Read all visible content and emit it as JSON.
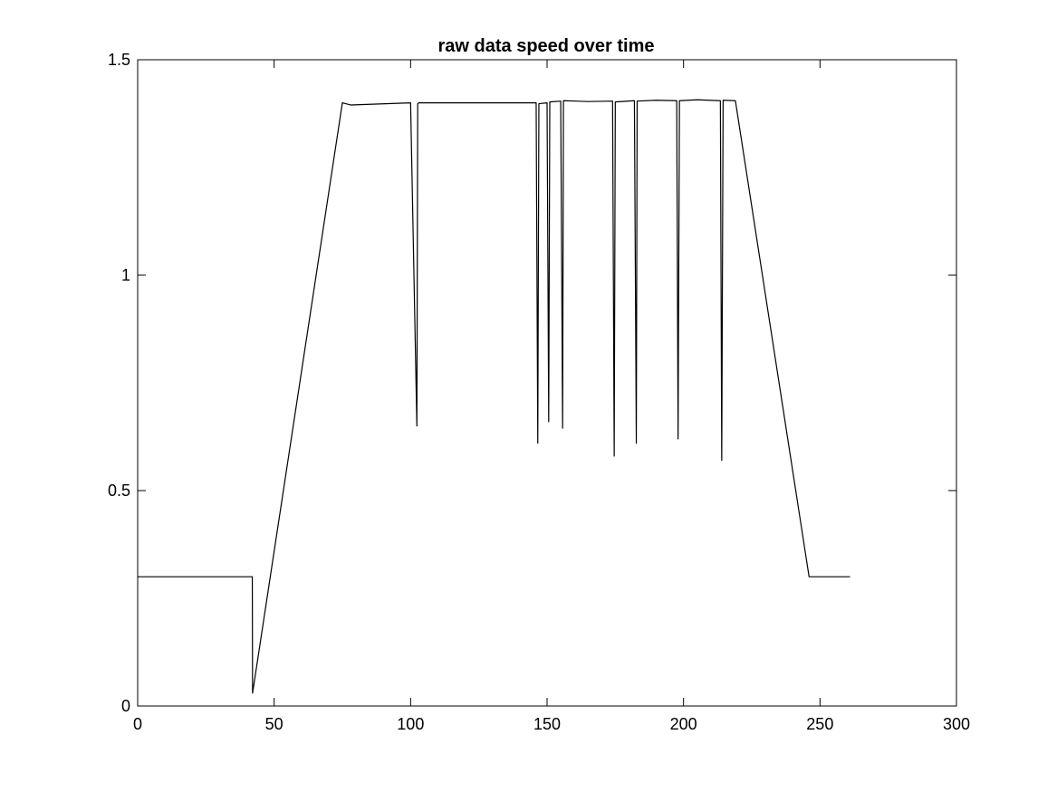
{
  "chart_data": {
    "type": "line",
    "title": "raw data speed over time",
    "xlabel": "",
    "ylabel": "",
    "xlim": [
      0,
      300
    ],
    "ylim": [
      0,
      1.5
    ],
    "xticks": [
      0,
      50,
      100,
      150,
      200,
      250,
      300
    ],
    "yticks": [
      0,
      0.5,
      1,
      1.5
    ],
    "xtick_labels": [
      "0",
      "50",
      "100",
      "150",
      "200",
      "250",
      "300"
    ],
    "ytick_labels": [
      "0",
      "0.5",
      "1",
      "1.5"
    ],
    "grid": false,
    "legend": "none",
    "line_color": "#000000",
    "series": [
      {
        "x": [
          0,
          42,
          42.1,
          75,
          78,
          100,
          102.3,
          102.6,
          103,
          125,
          146,
          146.6,
          147,
          150,
          150.6,
          151,
          155,
          155.7,
          156,
          165,
          174,
          174.6,
          175,
          182,
          182.7,
          183,
          190,
          197.5,
          198,
          198.5,
          205,
          213.5,
          214,
          214.5,
          219,
          246,
          261
        ],
        "y": [
          0.3,
          0.3,
          0.03,
          1.4,
          1.395,
          1.4,
          0.65,
          1.398,
          1.4,
          1.4,
          1.4,
          0.61,
          1.398,
          1.4,
          0.66,
          1.402,
          1.404,
          0.645,
          1.405,
          1.403,
          1.404,
          0.58,
          1.402,
          1.405,
          0.61,
          1.404,
          1.406,
          1.405,
          0.62,
          1.405,
          1.407,
          1.405,
          0.57,
          1.406,
          1.405,
          0.3,
          0.3
        ]
      }
    ]
  }
}
